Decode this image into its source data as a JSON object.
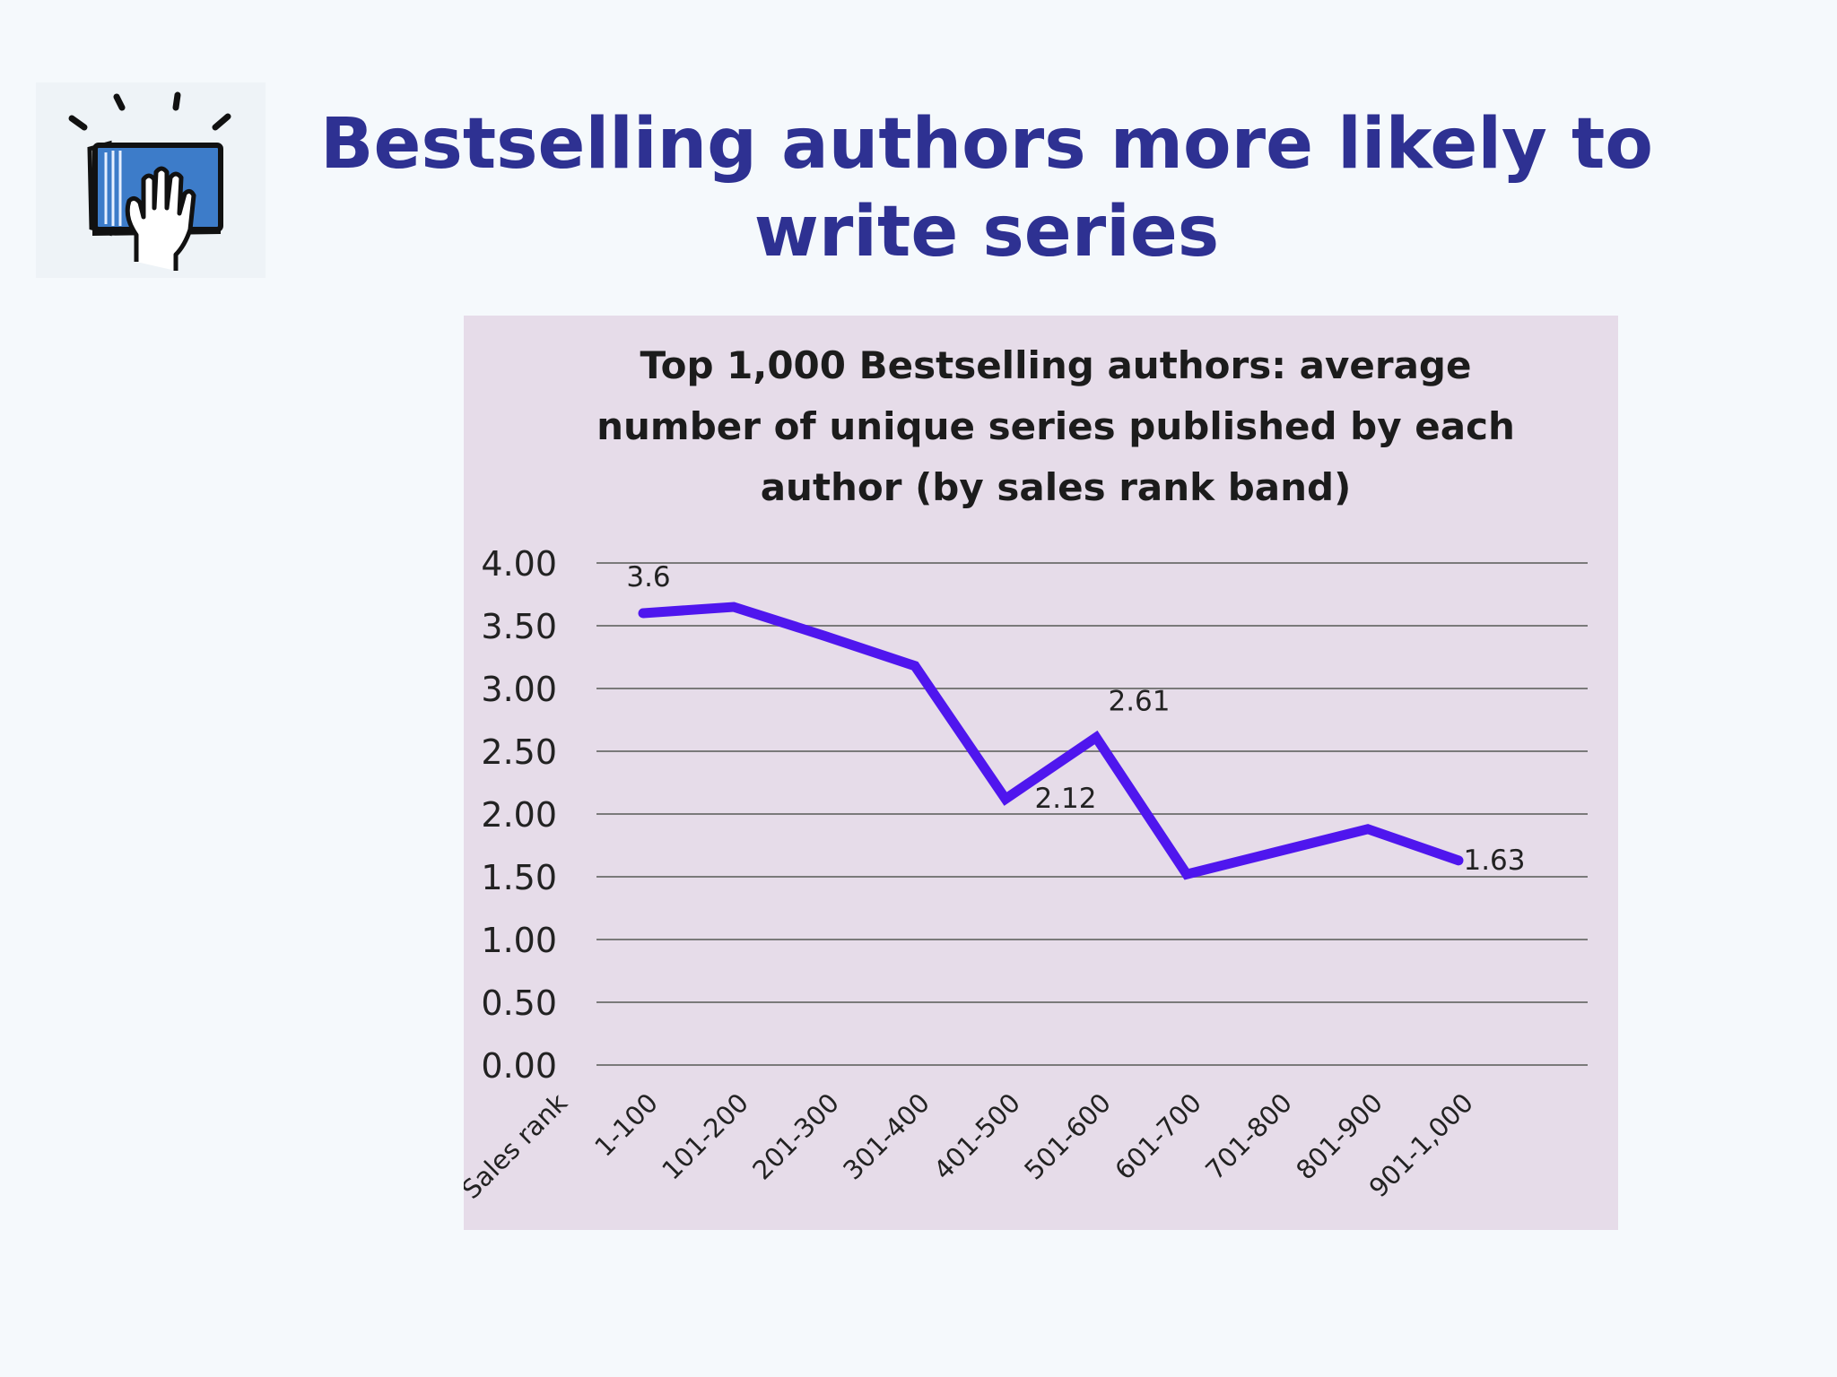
{
  "slide": {
    "title_lines": [
      "Bestselling authors more likely to",
      "write series"
    ],
    "logo_icon": "hand-on-book-icon"
  },
  "colors": {
    "title": "#2e3192",
    "line": "#4f16ee",
    "panel": "#e6dce9",
    "gridline": "#7a7a7a",
    "logo_book": "#3d7cc9"
  },
  "chart_data": {
    "type": "line",
    "title_lines": [
      "Top 1,000 Bestselling authors:  average",
      "number of unique series published by each",
      "author  (by sales rank band)"
    ],
    "categories": [
      "Sales rank",
      "1-100",
      "101-200",
      "201-300",
      "301-400",
      "401-500",
      "501-600",
      "601-700",
      "701-800",
      "801-900",
      "901-1,000"
    ],
    "series": [
      {
        "values": [
          null,
          3.6,
          3.65,
          3.42,
          3.18,
          2.12,
          2.61,
          1.52,
          1.7,
          1.88,
          1.63
        ]
      }
    ],
    "data_labels": [
      {
        "index": 1,
        "text": "3.6"
      },
      {
        "index": 5,
        "text": "2.12"
      },
      {
        "index": 6,
        "text": "2.61"
      },
      {
        "index": 10,
        "text": "1.63"
      }
    ],
    "ylim": [
      0,
      4
    ],
    "yticks": [
      "0.00",
      "0.50",
      "1.00",
      "1.50",
      "2.00",
      "2.50",
      "3.00",
      "3.50",
      "4.00"
    ],
    "grid": true,
    "legend": "none"
  }
}
